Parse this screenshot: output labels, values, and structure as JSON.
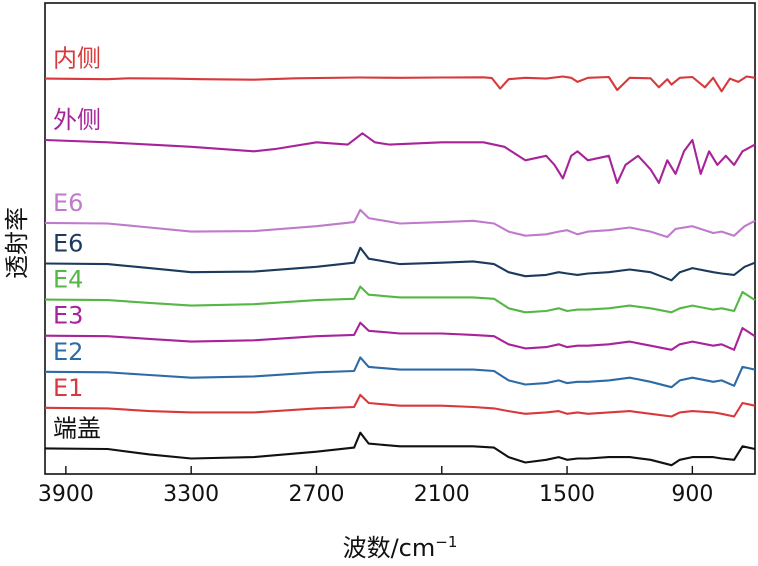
{
  "chart_data": {
    "type": "line",
    "title": "",
    "xlabel": "波数/cm",
    "xlabel_sup": "−1",
    "ylabel": "透射率",
    "xlim": [
      4000,
      600
    ],
    "x_ticks": [
      3900,
      3300,
      2700,
      2100,
      1500,
      900
    ],
    "x_tick_labels": [
      "3900",
      "3300",
      "2700",
      "2100",
      "1500",
      "900"
    ],
    "y_units": "relative transmittance (offset, arbitrary units)",
    "series": [
      {
        "name": "内侧",
        "color": "#d8393c",
        "offset": 0.84,
        "amp": 0.06,
        "points": [
          [
            4000,
            0.02
          ],
          [
            3700,
            0.0
          ],
          [
            3600,
            0.03
          ],
          [
            3400,
            0.02
          ],
          [
            3250,
            0.0
          ],
          [
            3000,
            -0.02
          ],
          [
            2800,
            0.03
          ],
          [
            2500,
            0.06
          ],
          [
            2300,
            0.05
          ],
          [
            2100,
            0.06
          ],
          [
            1900,
            0.07
          ],
          [
            1860,
            0.04
          ],
          [
            1820,
            -0.35
          ],
          [
            1780,
            0.0
          ],
          [
            1700,
            0.05
          ],
          [
            1600,
            0.02
          ],
          [
            1520,
            0.1
          ],
          [
            1480,
            0.05
          ],
          [
            1450,
            -0.1
          ],
          [
            1400,
            0.05
          ],
          [
            1300,
            0.08
          ],
          [
            1260,
            -0.4
          ],
          [
            1200,
            0.05
          ],
          [
            1100,
            0.03
          ],
          [
            1060,
            -0.3
          ],
          [
            1020,
            0.0
          ],
          [
            1000,
            -0.2
          ],
          [
            960,
            0.05
          ],
          [
            900,
            0.08
          ],
          [
            840,
            -0.3
          ],
          [
            800,
            0.05
          ],
          [
            760,
            -0.45
          ],
          [
            720,
            0.02
          ],
          [
            680,
            -0.1
          ],
          [
            640,
            0.1
          ],
          [
            600,
            0.05
          ]
        ]
      },
      {
        "name": "外侧",
        "color": "#a8239a",
        "offset": 0.7,
        "amp": 0.1,
        "points": [
          [
            4000,
            0.05
          ],
          [
            3700,
            0.0
          ],
          [
            3500,
            -0.05
          ],
          [
            3300,
            -0.1
          ],
          [
            3000,
            -0.2
          ],
          [
            2900,
            -0.15
          ],
          [
            2700,
            0.0
          ],
          [
            2550,
            -0.05
          ],
          [
            2480,
            0.2
          ],
          [
            2420,
            0.0
          ],
          [
            2350,
            -0.05
          ],
          [
            2100,
            0.0
          ],
          [
            1900,
            0.0
          ],
          [
            1800,
            -0.1
          ],
          [
            1700,
            -0.4
          ],
          [
            1600,
            -0.3
          ],
          [
            1560,
            -0.5
          ],
          [
            1520,
            -0.8
          ],
          [
            1480,
            -0.3
          ],
          [
            1450,
            -0.2
          ],
          [
            1400,
            -0.4
          ],
          [
            1300,
            -0.3
          ],
          [
            1260,
            -0.9
          ],
          [
            1220,
            -0.5
          ],
          [
            1160,
            -0.3
          ],
          [
            1100,
            -0.6
          ],
          [
            1060,
            -0.9
          ],
          [
            1020,
            -0.4
          ],
          [
            980,
            -0.7
          ],
          [
            940,
            -0.2
          ],
          [
            900,
            0.05
          ],
          [
            860,
            -0.7
          ],
          [
            820,
            -0.2
          ],
          [
            780,
            -0.5
          ],
          [
            740,
            -0.3
          ],
          [
            700,
            -0.5
          ],
          [
            660,
            -0.2
          ],
          [
            600,
            -0.05
          ]
        ]
      },
      {
        "name": "E6",
        "color": "#c07acb",
        "offset": 0.52,
        "amp": 0.06,
        "points": [
          [
            4000,
            0.02
          ],
          [
            3700,
            0.0
          ],
          [
            3500,
            -0.15
          ],
          [
            3300,
            -0.3
          ],
          [
            3000,
            -0.28
          ],
          [
            2700,
            -0.1
          ],
          [
            2520,
            0.05
          ],
          [
            2490,
            0.5
          ],
          [
            2450,
            0.2
          ],
          [
            2300,
            0.0
          ],
          [
            2100,
            0.05
          ],
          [
            1950,
            0.1
          ],
          [
            1850,
            0.0
          ],
          [
            1780,
            -0.3
          ],
          [
            1700,
            -0.45
          ],
          [
            1600,
            -0.4
          ],
          [
            1540,
            -0.3
          ],
          [
            1500,
            -0.25
          ],
          [
            1450,
            -0.4
          ],
          [
            1400,
            -0.3
          ],
          [
            1300,
            -0.25
          ],
          [
            1200,
            -0.15
          ],
          [
            1100,
            -0.3
          ],
          [
            1020,
            -0.5
          ],
          [
            980,
            -0.2
          ],
          [
            900,
            -0.1
          ],
          [
            800,
            -0.35
          ],
          [
            760,
            -0.3
          ],
          [
            700,
            -0.45
          ],
          [
            650,
            -0.1
          ],
          [
            600,
            0.1
          ]
        ]
      },
      {
        "name": "E6",
        "color": "#1b3a5c",
        "offset": 0.43,
        "amp": 0.06,
        "points": [
          [
            4000,
            0.02
          ],
          [
            3700,
            0.0
          ],
          [
            3500,
            -0.15
          ],
          [
            3300,
            -0.3
          ],
          [
            3000,
            -0.28
          ],
          [
            2700,
            -0.1
          ],
          [
            2520,
            0.05
          ],
          [
            2490,
            0.6
          ],
          [
            2450,
            0.2
          ],
          [
            2300,
            0.0
          ],
          [
            2100,
            0.05
          ],
          [
            1950,
            0.1
          ],
          [
            1850,
            0.0
          ],
          [
            1780,
            -0.3
          ],
          [
            1700,
            -0.45
          ],
          [
            1600,
            -0.4
          ],
          [
            1540,
            -0.3
          ],
          [
            1500,
            -0.35
          ],
          [
            1450,
            -0.4
          ],
          [
            1400,
            -0.35
          ],
          [
            1300,
            -0.3
          ],
          [
            1200,
            -0.2
          ],
          [
            1100,
            -0.3
          ],
          [
            1000,
            -0.6
          ],
          [
            960,
            -0.3
          ],
          [
            900,
            -0.15
          ],
          [
            800,
            -0.3
          ],
          [
            760,
            -0.35
          ],
          [
            700,
            -0.4
          ],
          [
            650,
            -0.1
          ],
          [
            600,
            0.05
          ]
        ]
      },
      {
        "name": "E4",
        "color": "#55b745",
        "offset": 0.35,
        "amp": 0.06,
        "points": [
          [
            4000,
            0.02
          ],
          [
            3700,
            0.0
          ],
          [
            3500,
            -0.1
          ],
          [
            3300,
            -0.2
          ],
          [
            3000,
            -0.15
          ],
          [
            2700,
            0.0
          ],
          [
            2520,
            0.05
          ],
          [
            2490,
            0.5
          ],
          [
            2450,
            0.2
          ],
          [
            2300,
            0.1
          ],
          [
            2100,
            0.1
          ],
          [
            1950,
            0.1
          ],
          [
            1850,
            0.05
          ],
          [
            1780,
            -0.3
          ],
          [
            1700,
            -0.45
          ],
          [
            1600,
            -0.4
          ],
          [
            1540,
            -0.3
          ],
          [
            1500,
            -0.4
          ],
          [
            1450,
            -0.35
          ],
          [
            1400,
            -0.35
          ],
          [
            1300,
            -0.3
          ],
          [
            1200,
            -0.2
          ],
          [
            1100,
            -0.3
          ],
          [
            1000,
            -0.45
          ],
          [
            960,
            -0.3
          ],
          [
            900,
            -0.2
          ],
          [
            800,
            -0.35
          ],
          [
            760,
            -0.3
          ],
          [
            700,
            -0.4
          ],
          [
            660,
            0.3
          ],
          [
            600,
            0.0
          ]
        ]
      },
      {
        "name": "E3",
        "color": "#a8239a",
        "offset": 0.27,
        "amp": 0.06,
        "points": [
          [
            4000,
            0.02
          ],
          [
            3700,
            0.0
          ],
          [
            3500,
            -0.1
          ],
          [
            3300,
            -0.2
          ],
          [
            3000,
            -0.15
          ],
          [
            2700,
            0.0
          ],
          [
            2520,
            0.05
          ],
          [
            2490,
            0.5
          ],
          [
            2450,
            0.2
          ],
          [
            2300,
            0.1
          ],
          [
            2100,
            0.1
          ],
          [
            1950,
            0.05
          ],
          [
            1850,
            0.0
          ],
          [
            1780,
            -0.3
          ],
          [
            1700,
            -0.45
          ],
          [
            1600,
            -0.4
          ],
          [
            1540,
            -0.3
          ],
          [
            1500,
            -0.4
          ],
          [
            1450,
            -0.35
          ],
          [
            1400,
            -0.35
          ],
          [
            1300,
            -0.3
          ],
          [
            1200,
            -0.2
          ],
          [
            1100,
            -0.35
          ],
          [
            1000,
            -0.5
          ],
          [
            960,
            -0.3
          ],
          [
            900,
            -0.2
          ],
          [
            800,
            -0.35
          ],
          [
            760,
            -0.3
          ],
          [
            700,
            -0.5
          ],
          [
            660,
            0.3
          ],
          [
            600,
            0.0
          ]
        ]
      },
      {
        "name": "E2",
        "color": "#2c6ba6",
        "offset": 0.19,
        "amp": 0.06,
        "points": [
          [
            4000,
            0.02
          ],
          [
            3700,
            0.0
          ],
          [
            3500,
            -0.1
          ],
          [
            3300,
            -0.2
          ],
          [
            3000,
            -0.15
          ],
          [
            2700,
            0.0
          ],
          [
            2520,
            0.05
          ],
          [
            2490,
            0.55
          ],
          [
            2450,
            0.2
          ],
          [
            2300,
            0.1
          ],
          [
            2100,
            0.1
          ],
          [
            1950,
            0.1
          ],
          [
            1850,
            0.05
          ],
          [
            1780,
            -0.3
          ],
          [
            1700,
            -0.45
          ],
          [
            1600,
            -0.4
          ],
          [
            1540,
            -0.3
          ],
          [
            1500,
            -0.4
          ],
          [
            1450,
            -0.35
          ],
          [
            1400,
            -0.35
          ],
          [
            1300,
            -0.3
          ],
          [
            1200,
            -0.2
          ],
          [
            1100,
            -0.35
          ],
          [
            1000,
            -0.55
          ],
          [
            960,
            -0.3
          ],
          [
            900,
            -0.2
          ],
          [
            800,
            -0.35
          ],
          [
            760,
            -0.3
          ],
          [
            700,
            -0.5
          ],
          [
            660,
            0.2
          ],
          [
            600,
            0.1
          ]
        ]
      },
      {
        "name": "E1",
        "color": "#d8393c",
        "offset": 0.11,
        "amp": 0.06,
        "points": [
          [
            4000,
            0.02
          ],
          [
            3700,
            0.0
          ],
          [
            3500,
            -0.1
          ],
          [
            3300,
            -0.15
          ],
          [
            3000,
            -0.15
          ],
          [
            2700,
            0.0
          ],
          [
            2520,
            0.05
          ],
          [
            2490,
            0.5
          ],
          [
            2450,
            0.2
          ],
          [
            2300,
            0.1
          ],
          [
            2100,
            0.1
          ],
          [
            1950,
            0.05
          ],
          [
            1850,
            0.0
          ],
          [
            1780,
            -0.1
          ],
          [
            1700,
            -0.2
          ],
          [
            1600,
            -0.15
          ],
          [
            1540,
            -0.1
          ],
          [
            1500,
            -0.2
          ],
          [
            1450,
            -0.15
          ],
          [
            1400,
            -0.2
          ],
          [
            1300,
            -0.15
          ],
          [
            1200,
            -0.1
          ],
          [
            1100,
            -0.2
          ],
          [
            1000,
            -0.3
          ],
          [
            960,
            -0.15
          ],
          [
            900,
            -0.1
          ],
          [
            800,
            -0.15
          ],
          [
            760,
            -0.2
          ],
          [
            700,
            -0.3
          ],
          [
            660,
            0.2
          ],
          [
            600,
            0.1
          ]
        ]
      },
      {
        "name": "端盖",
        "color": "#111111",
        "offset": 0.02,
        "amp": 0.06,
        "points": [
          [
            4000,
            0.02
          ],
          [
            3700,
            0.0
          ],
          [
            3500,
            -0.2
          ],
          [
            3300,
            -0.35
          ],
          [
            3000,
            -0.3
          ],
          [
            2700,
            -0.1
          ],
          [
            2520,
            0.05
          ],
          [
            2490,
            0.6
          ],
          [
            2450,
            0.2
          ],
          [
            2300,
            0.1
          ],
          [
            2100,
            0.1
          ],
          [
            1950,
            0.1
          ],
          [
            1850,
            0.05
          ],
          [
            1780,
            -0.3
          ],
          [
            1700,
            -0.5
          ],
          [
            1600,
            -0.4
          ],
          [
            1540,
            -0.3
          ],
          [
            1500,
            -0.4
          ],
          [
            1450,
            -0.35
          ],
          [
            1400,
            -0.35
          ],
          [
            1300,
            -0.3
          ],
          [
            1200,
            -0.3
          ],
          [
            1100,
            -0.4
          ],
          [
            1000,
            -0.6
          ],
          [
            960,
            -0.4
          ],
          [
            900,
            -0.3
          ],
          [
            800,
            -0.3
          ],
          [
            760,
            -0.35
          ],
          [
            700,
            -0.4
          ],
          [
            660,
            0.1
          ],
          [
            600,
            0.0
          ]
        ]
      }
    ]
  }
}
